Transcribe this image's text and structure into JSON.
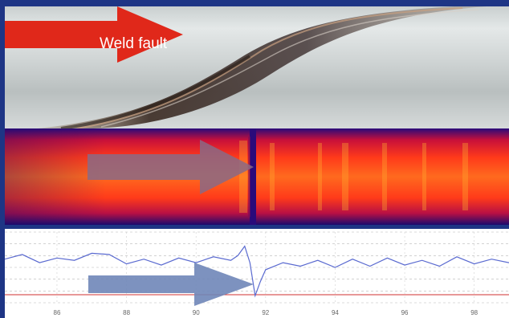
{
  "photo": {
    "label": "Weld fault",
    "arrow_color": "#e0281a"
  },
  "thermal": {
    "arrow_color": "#8a6a86"
  },
  "chart_data": {
    "type": "line",
    "x": [
      84.5,
      85,
      85.5,
      86,
      86.5,
      87,
      87.5,
      88,
      88.5,
      89,
      89.5,
      90,
      90.5,
      91,
      91.2,
      91.4,
      91.55,
      91.7,
      91.85,
      92,
      92.5,
      93,
      93.5,
      94,
      94.5,
      95,
      95.5,
      96,
      96.5,
      97,
      97.5,
      98,
      98.5,
      99
    ],
    "series": [
      {
        "values": [
          0.35,
          0.55,
          0.2,
          0.4,
          0.3,
          0.6,
          0.55,
          0.15,
          0.35,
          0.1,
          0.4,
          0.2,
          0.45,
          0.3,
          0.5,
          0.9,
          0.2,
          -1.2,
          -0.6,
          -0.1,
          0.2,
          0.05,
          0.3,
          0.0,
          0.35,
          0.05,
          0.4,
          0.1,
          0.3,
          0.05,
          0.45,
          0.15,
          0.35,
          0.2
        ]
      }
    ],
    "xticks": [
      "86",
      "88",
      "90",
      "92",
      "94",
      "96",
      "98"
    ],
    "xlim": [
      84.5,
      99
    ],
    "ylim": [
      -1.5,
      1.5
    ],
    "grid": true,
    "reference_line_color": "#d23030",
    "arrow_color": "#6f86b8"
  }
}
